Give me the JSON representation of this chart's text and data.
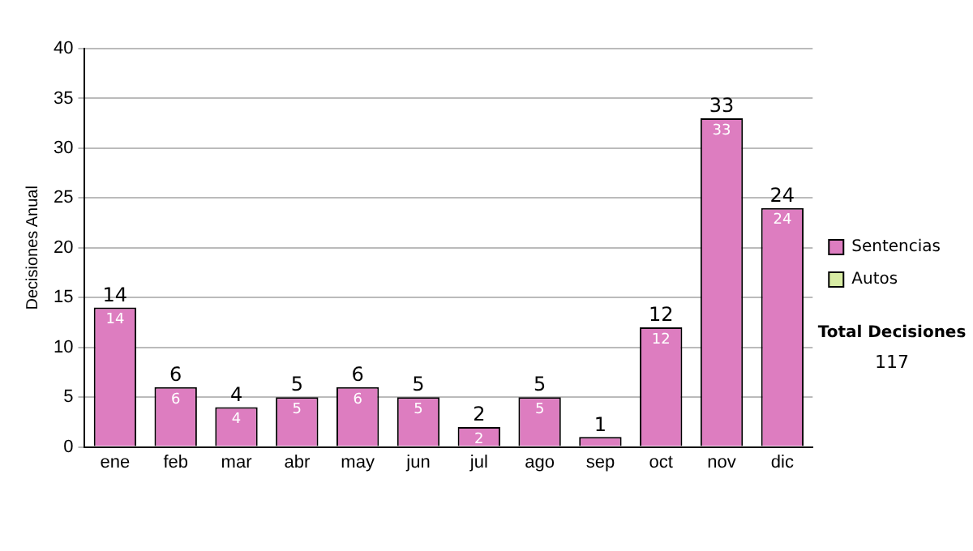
{
  "chart_data": {
    "type": "bar",
    "stacked": true,
    "ylabel": "Decisiones Anual",
    "categories": [
      "ene",
      "feb",
      "mar",
      "abr",
      "may",
      "jun",
      "jul",
      "ago",
      "sep",
      "oct",
      "nov",
      "dic"
    ],
    "series": [
      {
        "name": "Sentencias",
        "color": "#dd7dc0",
        "values": [
          14,
          6,
          4,
          5,
          6,
          5,
          2,
          5,
          1,
          12,
          33,
          24
        ],
        "value_labels": [
          "14",
          "6",
          "4",
          "5",
          "6",
          "5",
          "2",
          "5",
          null,
          "12",
          "33",
          "24"
        ]
      },
      {
        "name": "Autos",
        "color": "#d8eca4",
        "values": [
          null,
          null,
          null,
          null,
          null,
          null,
          null,
          null,
          null,
          null,
          null,
          null
        ]
      }
    ],
    "totals": [
      "14",
      "6",
      "4",
      "5",
      "6",
      "5",
      "2",
      "5",
      "1",
      "12",
      "33",
      "24"
    ],
    "ylim": [
      0,
      40
    ],
    "yticks": [
      0,
      5,
      10,
      15,
      20,
      25,
      30,
      35,
      40
    ],
    "grid": "y",
    "legend": "right",
    "annotations": [
      "Total Decisiones",
      "117"
    ]
  }
}
